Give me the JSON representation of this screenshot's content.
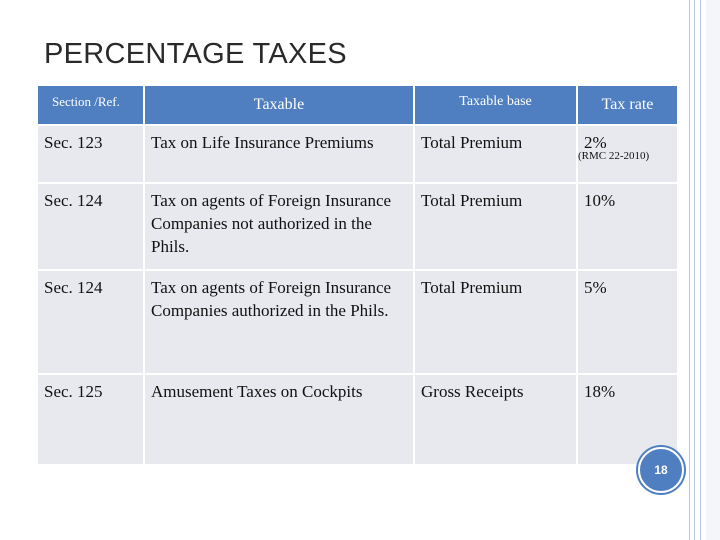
{
  "header": {
    "title": "PERCENTAGE TAXES"
  },
  "table": {
    "headers": [
      "Section /Ref.",
      "Taxable",
      "Taxable base",
      "Tax rate"
    ],
    "rows": [
      [
        "Sec. 123",
        "Tax on Life Insurance Premiums",
        "Total Premium",
        "2%"
      ],
      [
        "Sec. 124",
        "Tax on agents of Foreign Insurance Companies not authorized in the Phils.",
        "Total Premium",
        "10%"
      ],
      [
        "Sec. 124",
        "Tax on agents of Foreign Insurance Companies authorized in the Phils.",
        "Total Premium",
        "5%"
      ],
      [
        "Sec. 125",
        "Amusement Taxes on Cockpits",
        "Gross Receipts",
        "18%"
      ]
    ],
    "rate_note": "(RMC 22-2010)"
  },
  "footer": {
    "page_number": "18"
  }
}
